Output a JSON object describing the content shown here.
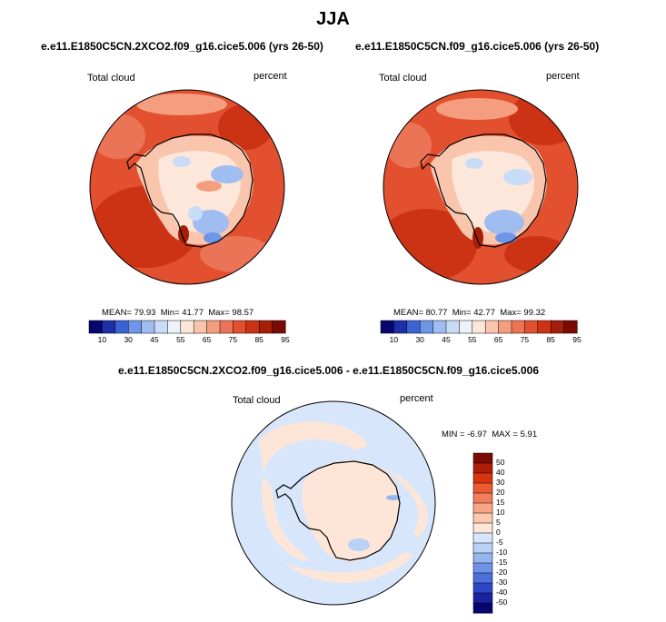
{
  "page": {
    "title": "JJA"
  },
  "chart_data": [
    {
      "type": "heatmap",
      "projection": "south-polar-stereographic",
      "title": "e.e11.E1850C5CN.2XCO2.f09_g16.cice5.006 (yrs 26-50)",
      "field_label": "Total cloud",
      "units": "percent",
      "stats": {
        "mean_label": "MEAN=",
        "mean": "79.93",
        "min_label": "Min=",
        "min": "41.77",
        "max_label": "Max=",
        "max": "98.57"
      },
      "colorbar": {
        "orientation": "horizontal",
        "tick_labels": [
          "10",
          "30",
          "45",
          "55",
          "65",
          "75",
          "85",
          "95"
        ],
        "colors": [
          "#06066e",
          "#1d2fa8",
          "#3b63d6",
          "#6f95e6",
          "#9fbdf0",
          "#c9dcf7",
          "#edf3fb",
          "#fde7da",
          "#f9c6ad",
          "#f49e7f",
          "#ec7456",
          "#e2502f",
          "#cc3314",
          "#a51e0a",
          "#7a0a02"
        ]
      }
    },
    {
      "type": "heatmap",
      "projection": "south-polar-stereographic",
      "title": "e.e11.E1850C5CN.f09_g16.cice5.006 (yrs 26-50)",
      "field_label": "Total cloud",
      "units": "percent",
      "stats": {
        "mean_label": "MEAN=",
        "mean": "80.77",
        "min_label": "Min=",
        "min": "42.77",
        "max_label": "Max=",
        "max": "99.32"
      },
      "colorbar": {
        "orientation": "horizontal",
        "tick_labels": [
          "10",
          "30",
          "45",
          "55",
          "65",
          "75",
          "85",
          "95"
        ],
        "colors": [
          "#06066e",
          "#1d2fa8",
          "#3b63d6",
          "#6f95e6",
          "#9fbdf0",
          "#c9dcf7",
          "#edf3fb",
          "#fde7da",
          "#f9c6ad",
          "#f49e7f",
          "#ec7456",
          "#e2502f",
          "#cc3314",
          "#a51e0a",
          "#7a0a02"
        ]
      }
    },
    {
      "type": "heatmap",
      "projection": "south-polar-stereographic",
      "title": "e.e11.E1850C5CN.2XCO2.f09_g16.cice5.006 - e.e11.E1850C5CN.f09_g16.cice5.006",
      "field_label": "Total cloud",
      "units": "percent",
      "stats": {
        "min_label": "MIN =",
        "min": "-6.97",
        "max_label": "MAX =",
        "max": "5.91"
      },
      "colorbar": {
        "orientation": "vertical",
        "tick_labels": [
          "50",
          "40",
          "30",
          "20",
          "15",
          "10",
          "5",
          "0",
          "-5",
          "-10",
          "-15",
          "-20",
          "-30",
          "-40",
          "-50"
        ],
        "colors": [
          "#7a0a02",
          "#b01e08",
          "#d8350f",
          "#ec5a32",
          "#f47d5c",
          "#f8a585",
          "#fbc8b0",
          "#fde6d8",
          "#d7e6fb",
          "#b8d1f6",
          "#95b6ef",
          "#6e93e6",
          "#4c6fdc",
          "#2d48c6",
          "#1a22a0",
          "#06066e"
        ]
      }
    }
  ]
}
